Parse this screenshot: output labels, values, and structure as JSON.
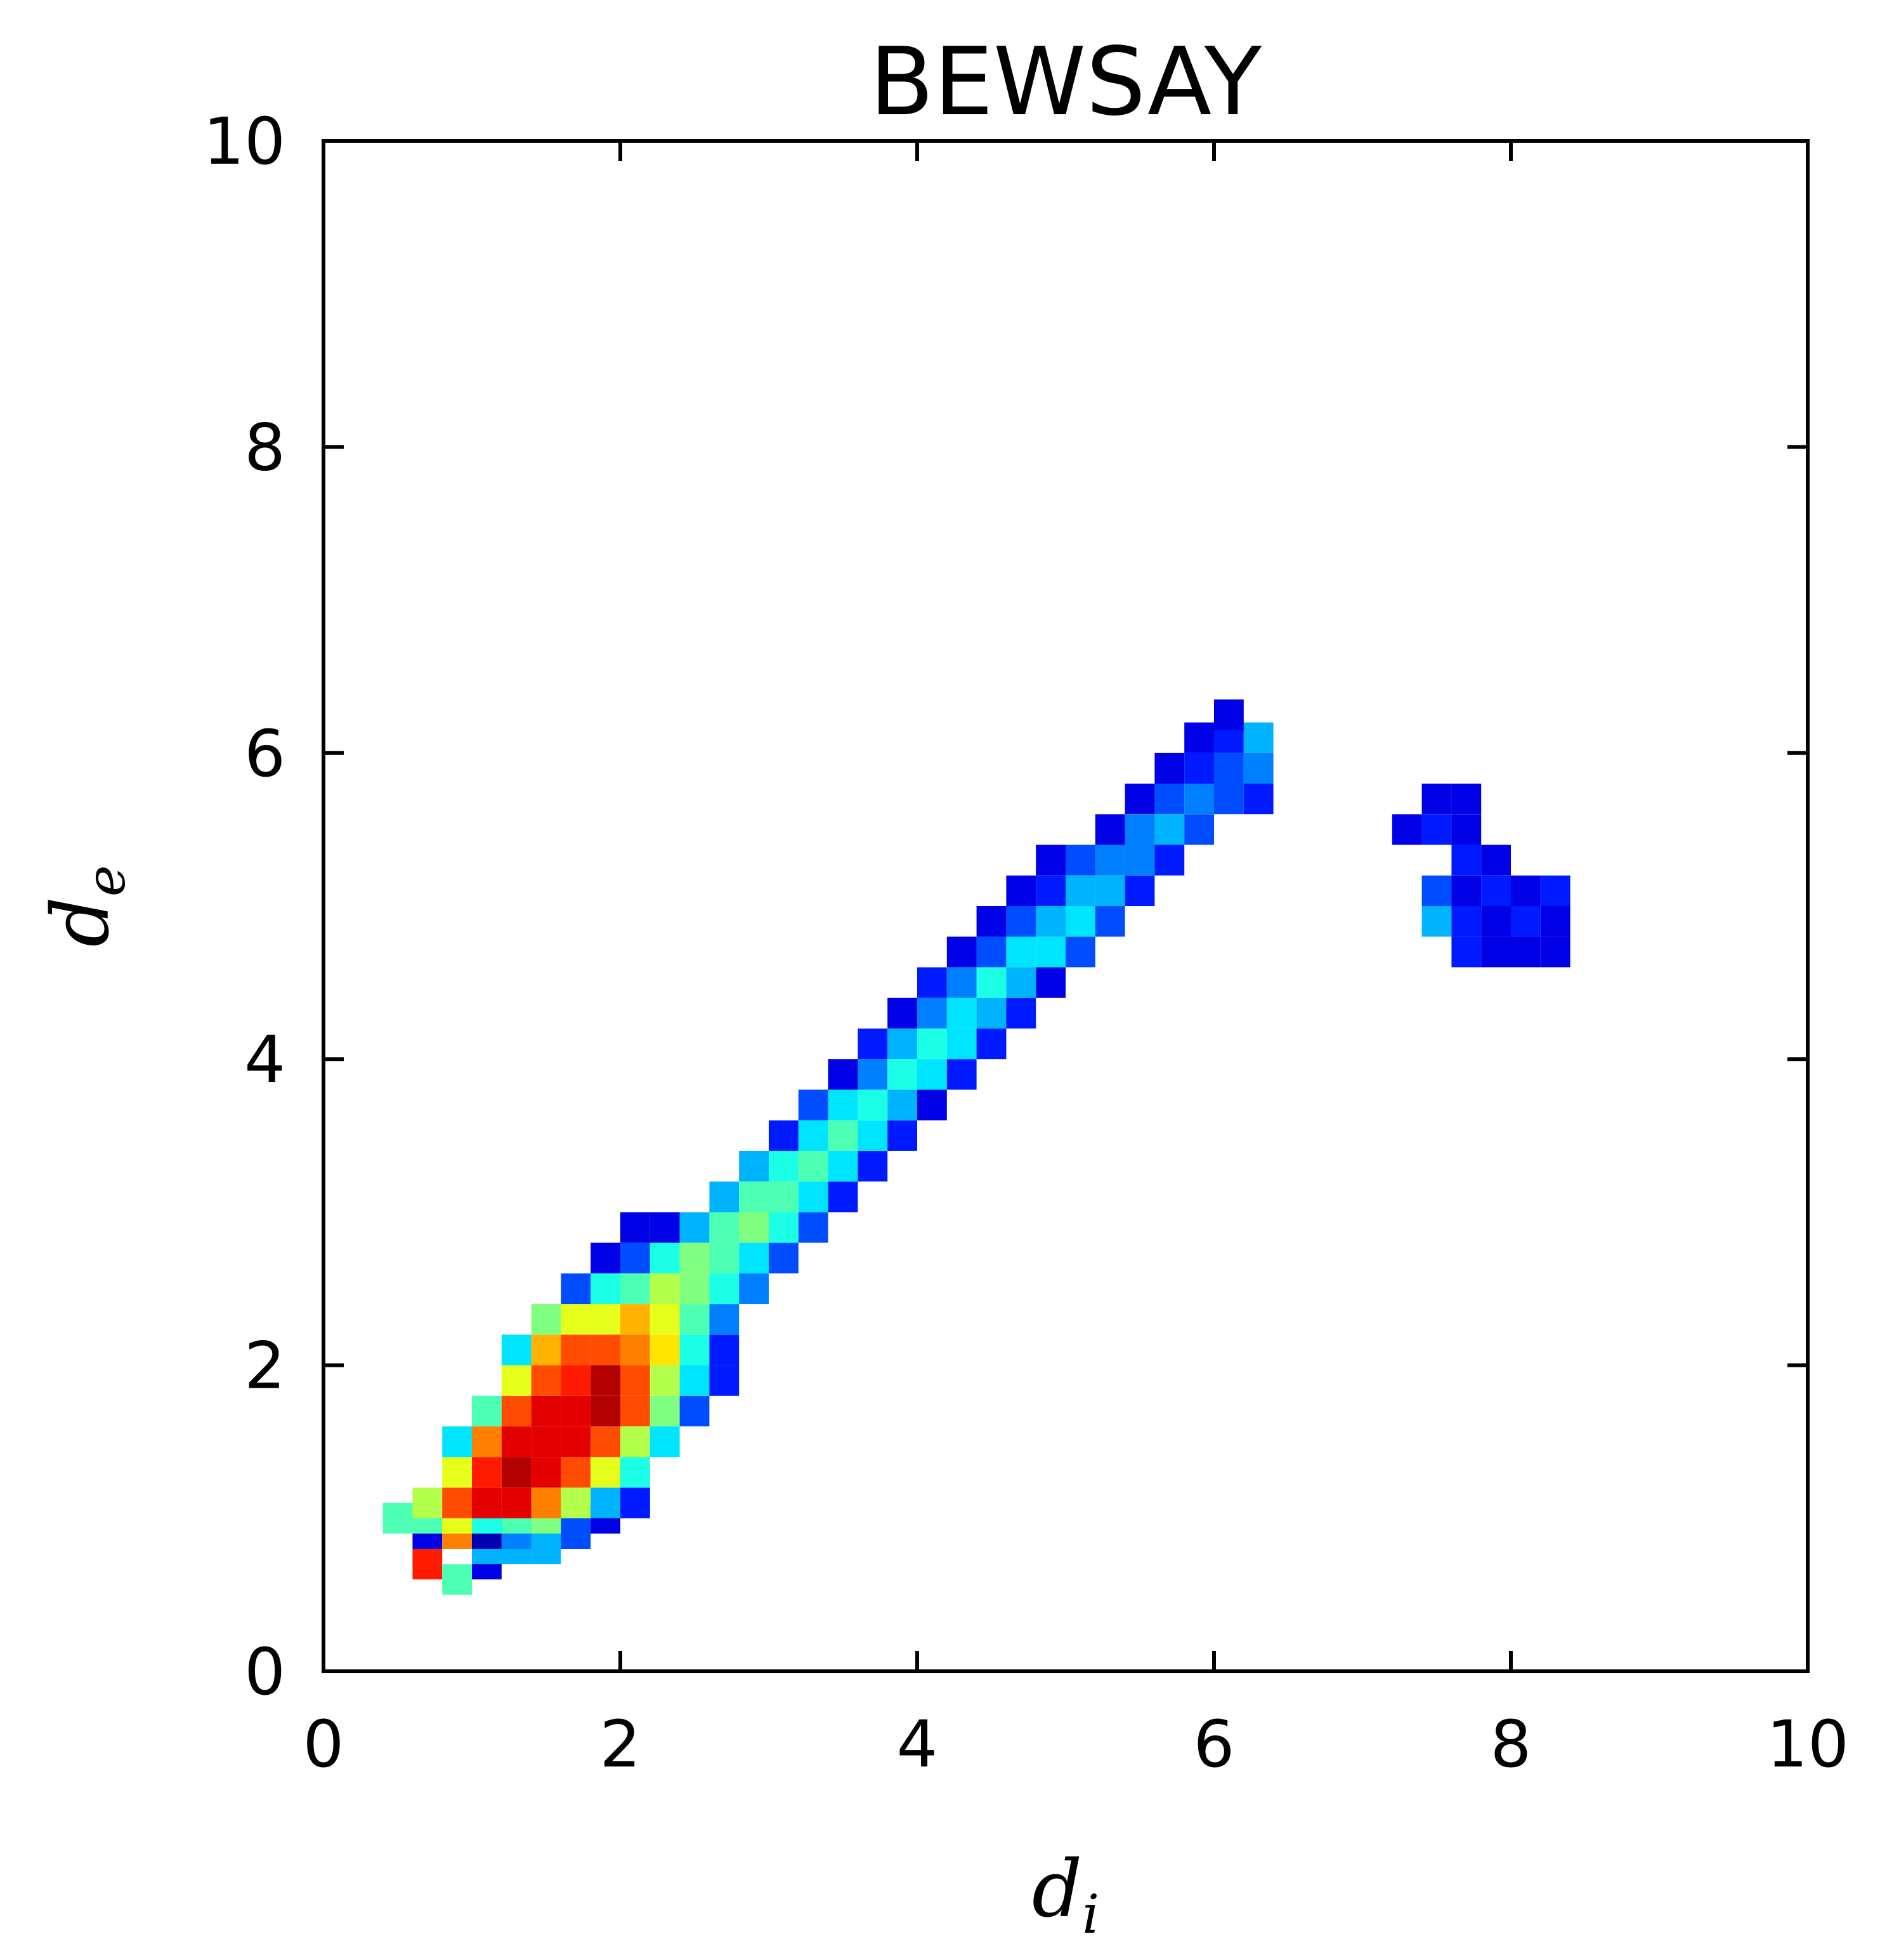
{
  "chart_data": {
    "type": "heatmap",
    "title": "BEWSAY",
    "xlabel": {
      "base": "d",
      "sub": "i"
    },
    "ylabel": {
      "base": "d",
      "sub": "e"
    },
    "xlim": [
      0,
      10
    ],
    "ylim": [
      0,
      10
    ],
    "xticks": [
      "0",
      "2",
      "4",
      "6",
      "8",
      "10"
    ],
    "yticks": [
      "0",
      "2",
      "4",
      "6",
      "8",
      "10"
    ],
    "grid": false,
    "legend": "none",
    "bin_size": 0.2,
    "colormap": "jet",
    "colors": {
      "background": "#ffffff",
      "axes": "#000000"
    },
    "cells": [
      [
        0.7,
        0.7,
        0.85
      ],
      [
        0.9,
        0.6,
        0.45
      ],
      [
        1.1,
        0.7,
        0.1
      ],
      [
        1.1,
        0.8,
        0.3
      ],
      [
        1.3,
        0.8,
        0.3
      ],
      [
        1.5,
        0.8,
        0.3
      ],
      [
        0.7,
        0.9,
        0.1
      ],
      [
        0.9,
        0.9,
        0.75
      ],
      [
        1.1,
        0.9,
        0.05
      ],
      [
        1.3,
        0.9,
        0.25
      ],
      [
        1.5,
        0.9,
        0.3
      ],
      [
        1.7,
        0.9,
        0.2
      ],
      [
        0.5,
        1.0,
        0.45
      ],
      [
        0.7,
        1.0,
        0.45
      ],
      [
        0.9,
        1.0,
        0.6
      ],
      [
        1.1,
        1.0,
        0.4
      ],
      [
        1.3,
        1.0,
        0.45
      ],
      [
        1.5,
        1.0,
        0.5
      ],
      [
        1.7,
        1.0,
        0.2
      ],
      [
        1.9,
        1.0,
        0.1
      ],
      [
        0.7,
        1.1,
        0.55
      ],
      [
        0.9,
        1.1,
        0.8
      ],
      [
        1.1,
        1.1,
        0.9
      ],
      [
        1.3,
        1.1,
        0.9
      ],
      [
        1.5,
        1.1,
        0.75
      ],
      [
        1.7,
        1.1,
        0.55
      ],
      [
        1.9,
        1.1,
        0.3
      ],
      [
        2.1,
        1.1,
        0.15
      ],
      [
        0.9,
        1.3,
        0.6
      ],
      [
        1.1,
        1.3,
        0.85
      ],
      [
        1.3,
        1.3,
        0.95
      ],
      [
        1.5,
        1.3,
        0.9
      ],
      [
        1.7,
        1.3,
        0.8
      ],
      [
        1.9,
        1.3,
        0.6
      ],
      [
        2.1,
        1.3,
        0.4
      ],
      [
        0.9,
        1.5,
        0.35
      ],
      [
        1.1,
        1.5,
        0.75
      ],
      [
        1.3,
        1.5,
        0.9
      ],
      [
        1.5,
        1.5,
        0.9
      ],
      [
        1.7,
        1.5,
        0.9
      ],
      [
        1.9,
        1.5,
        0.8
      ],
      [
        2.1,
        1.5,
        0.55
      ],
      [
        2.3,
        1.5,
        0.35
      ],
      [
        1.1,
        1.7,
        0.45
      ],
      [
        1.3,
        1.7,
        0.8
      ],
      [
        1.5,
        1.7,
        0.9
      ],
      [
        1.7,
        1.7,
        0.9
      ],
      [
        1.9,
        1.7,
        0.95
      ],
      [
        2.1,
        1.7,
        0.8
      ],
      [
        2.3,
        1.7,
        0.5
      ],
      [
        2.5,
        1.7,
        0.2
      ],
      [
        1.3,
        1.9,
        0.6
      ],
      [
        1.5,
        1.9,
        0.8
      ],
      [
        1.7,
        1.9,
        0.85
      ],
      [
        1.9,
        1.9,
        0.95
      ],
      [
        2.1,
        1.9,
        0.8
      ],
      [
        2.3,
        1.9,
        0.55
      ],
      [
        2.5,
        1.9,
        0.35
      ],
      [
        2.7,
        1.9,
        0.15
      ],
      [
        1.3,
        2.1,
        0.35
      ],
      [
        1.5,
        2.1,
        0.7
      ],
      [
        1.7,
        2.1,
        0.8
      ],
      [
        1.9,
        2.1,
        0.8
      ],
      [
        2.1,
        2.1,
        0.75
      ],
      [
        2.3,
        2.1,
        0.65
      ],
      [
        2.5,
        2.1,
        0.4
      ],
      [
        2.7,
        2.1,
        0.15
      ],
      [
        1.5,
        2.3,
        0.5
      ],
      [
        1.7,
        2.3,
        0.6
      ],
      [
        1.9,
        2.3,
        0.6
      ],
      [
        2.1,
        2.3,
        0.7
      ],
      [
        2.3,
        2.3,
        0.6
      ],
      [
        2.5,
        2.3,
        0.45
      ],
      [
        2.7,
        2.3,
        0.25
      ],
      [
        1.7,
        2.5,
        0.2
      ],
      [
        1.9,
        2.5,
        0.4
      ],
      [
        2.1,
        2.5,
        0.45
      ],
      [
        2.3,
        2.5,
        0.55
      ],
      [
        2.5,
        2.5,
        0.5
      ],
      [
        2.7,
        2.5,
        0.4
      ],
      [
        2.9,
        2.5,
        0.25
      ],
      [
        1.9,
        2.7,
        0.1
      ],
      [
        2.1,
        2.7,
        0.2
      ],
      [
        2.3,
        2.7,
        0.4
      ],
      [
        2.5,
        2.7,
        0.5
      ],
      [
        2.7,
        2.7,
        0.45
      ],
      [
        2.9,
        2.7,
        0.35
      ],
      [
        3.1,
        2.7,
        0.2
      ],
      [
        2.1,
        2.9,
        0.1
      ],
      [
        2.3,
        2.9,
        0.1
      ],
      [
        2.5,
        2.9,
        0.3
      ],
      [
        2.7,
        2.9,
        0.45
      ],
      [
        2.9,
        2.9,
        0.5
      ],
      [
        3.1,
        2.9,
        0.4
      ],
      [
        3.3,
        2.9,
        0.2
      ],
      [
        2.7,
        3.1,
        0.3
      ],
      [
        2.9,
        3.1,
        0.45
      ],
      [
        3.1,
        3.1,
        0.45
      ],
      [
        3.3,
        3.1,
        0.35
      ],
      [
        3.5,
        3.1,
        0.15
      ],
      [
        2.9,
        3.3,
        0.3
      ],
      [
        3.1,
        3.3,
        0.4
      ],
      [
        3.3,
        3.3,
        0.45
      ],
      [
        3.5,
        3.3,
        0.35
      ],
      [
        3.7,
        3.3,
        0.15
      ],
      [
        3.1,
        3.5,
        0.15
      ],
      [
        3.3,
        3.5,
        0.35
      ],
      [
        3.5,
        3.5,
        0.45
      ],
      [
        3.7,
        3.5,
        0.35
      ],
      [
        3.9,
        3.5,
        0.15
      ],
      [
        3.3,
        3.7,
        0.2
      ],
      [
        3.5,
        3.7,
        0.35
      ],
      [
        3.7,
        3.7,
        0.4
      ],
      [
        3.9,
        3.7,
        0.3
      ],
      [
        4.1,
        3.7,
        0.1
      ],
      [
        3.5,
        3.9,
        0.1
      ],
      [
        3.7,
        3.9,
        0.25
      ],
      [
        3.9,
        3.9,
        0.4
      ],
      [
        4.1,
        3.9,
        0.35
      ],
      [
        4.3,
        3.9,
        0.15
      ],
      [
        3.7,
        4.1,
        0.15
      ],
      [
        3.9,
        4.1,
        0.3
      ],
      [
        4.1,
        4.1,
        0.4
      ],
      [
        4.3,
        4.1,
        0.35
      ],
      [
        4.5,
        4.1,
        0.15
      ],
      [
        3.9,
        4.3,
        0.1
      ],
      [
        4.1,
        4.3,
        0.25
      ],
      [
        4.3,
        4.3,
        0.35
      ],
      [
        4.5,
        4.3,
        0.3
      ],
      [
        4.7,
        4.3,
        0.15
      ],
      [
        4.1,
        4.5,
        0.15
      ],
      [
        4.3,
        4.5,
        0.25
      ],
      [
        4.5,
        4.5,
        0.4
      ],
      [
        4.7,
        4.5,
        0.3
      ],
      [
        4.9,
        4.5,
        0.1
      ],
      [
        4.3,
        4.7,
        0.1
      ],
      [
        4.5,
        4.7,
        0.2
      ],
      [
        4.7,
        4.7,
        0.35
      ],
      [
        4.9,
        4.7,
        0.35
      ],
      [
        5.1,
        4.7,
        0.2
      ],
      [
        4.5,
        4.9,
        0.1
      ],
      [
        4.7,
        4.9,
        0.2
      ],
      [
        4.9,
        4.9,
        0.3
      ],
      [
        5.1,
        4.9,
        0.35
      ],
      [
        5.3,
        4.9,
        0.2
      ],
      [
        4.7,
        5.1,
        0.1
      ],
      [
        4.9,
        5.1,
        0.15
      ],
      [
        5.1,
        5.1,
        0.3
      ],
      [
        5.3,
        5.1,
        0.3
      ],
      [
        5.5,
        5.1,
        0.15
      ],
      [
        4.9,
        5.3,
        0.1
      ],
      [
        5.1,
        5.3,
        0.2
      ],
      [
        5.3,
        5.3,
        0.25
      ],
      [
        5.5,
        5.3,
        0.25
      ],
      [
        5.7,
        5.3,
        0.15
      ],
      [
        5.3,
        5.5,
        0.1
      ],
      [
        5.5,
        5.5,
        0.25
      ],
      [
        5.7,
        5.5,
        0.3
      ],
      [
        5.9,
        5.5,
        0.2
      ],
      [
        5.5,
        5.7,
        0.1
      ],
      [
        5.7,
        5.7,
        0.2
      ],
      [
        5.9,
        5.7,
        0.25
      ],
      [
        6.1,
        5.7,
        0.2
      ],
      [
        6.3,
        5.7,
        0.15
      ],
      [
        5.7,
        5.9,
        0.1
      ],
      [
        5.9,
        5.9,
        0.15
      ],
      [
        6.1,
        5.9,
        0.2
      ],
      [
        6.3,
        5.9,
        0.25
      ],
      [
        5.9,
        6.1,
        0.1
      ],
      [
        6.1,
        6.1,
        0.15
      ],
      [
        6.3,
        6.1,
        0.3
      ],
      [
        6.1,
        6.25,
        0.1
      ],
      [
        7.3,
        5.5,
        0.1
      ],
      [
        7.5,
        5.5,
        0.15
      ],
      [
        7.5,
        5.7,
        0.1
      ],
      [
        7.7,
        5.5,
        0.1
      ],
      [
        7.7,
        5.3,
        0.15
      ],
      [
        7.9,
        5.3,
        0.1
      ],
      [
        7.5,
        5.1,
        0.2
      ],
      [
        7.7,
        5.1,
        0.1
      ],
      [
        7.9,
        5.1,
        0.15
      ],
      [
        8.1,
        5.1,
        0.1
      ],
      [
        8.3,
        5.1,
        0.15
      ],
      [
        7.5,
        4.9,
        0.3
      ],
      [
        7.7,
        4.9,
        0.15
      ],
      [
        7.9,
        4.9,
        0.1
      ],
      [
        8.1,
        4.9,
        0.15
      ],
      [
        8.3,
        4.9,
        0.1
      ],
      [
        7.7,
        4.7,
        0.15
      ],
      [
        7.9,
        4.7,
        0.1
      ],
      [
        8.1,
        4.7,
        0.1
      ],
      [
        8.3,
        4.7,
        0.1
      ],
      [
        7.7,
        5.7,
        0.1
      ]
    ]
  }
}
